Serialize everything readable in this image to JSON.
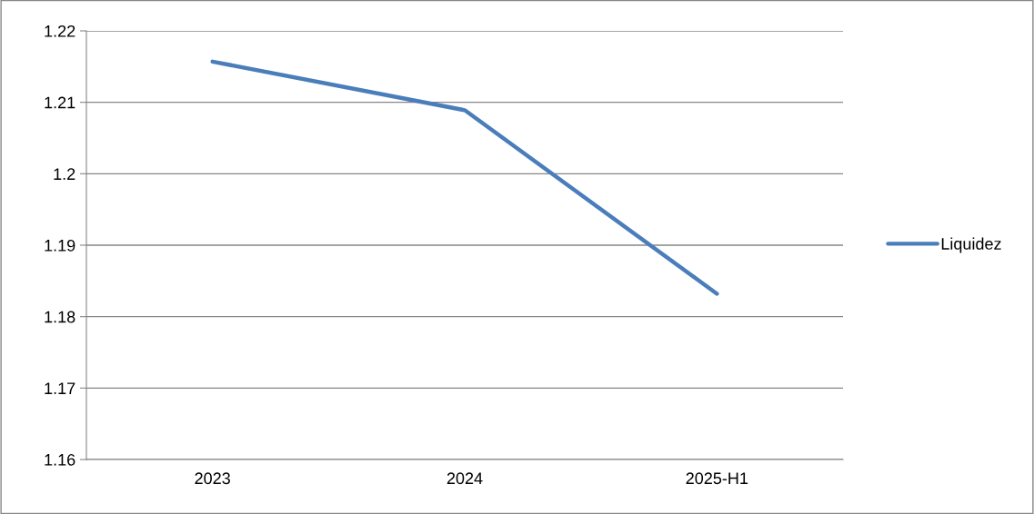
{
  "chart_data": {
    "type": "line",
    "categories": [
      "2023",
      "2024",
      "2025-H1"
    ],
    "series": [
      {
        "name": "Liquidez",
        "color": "#4a7ebb",
        "values": [
          1.2157,
          1.2089,
          1.1832
        ]
      }
    ],
    "ylim": [
      1.16,
      1.22
    ],
    "yticks": [
      1.16,
      1.17,
      1.18,
      1.19,
      1.2,
      1.21,
      1.22
    ],
    "grid": "y",
    "legend": "right",
    "line_style": "solid",
    "marker": "none"
  }
}
